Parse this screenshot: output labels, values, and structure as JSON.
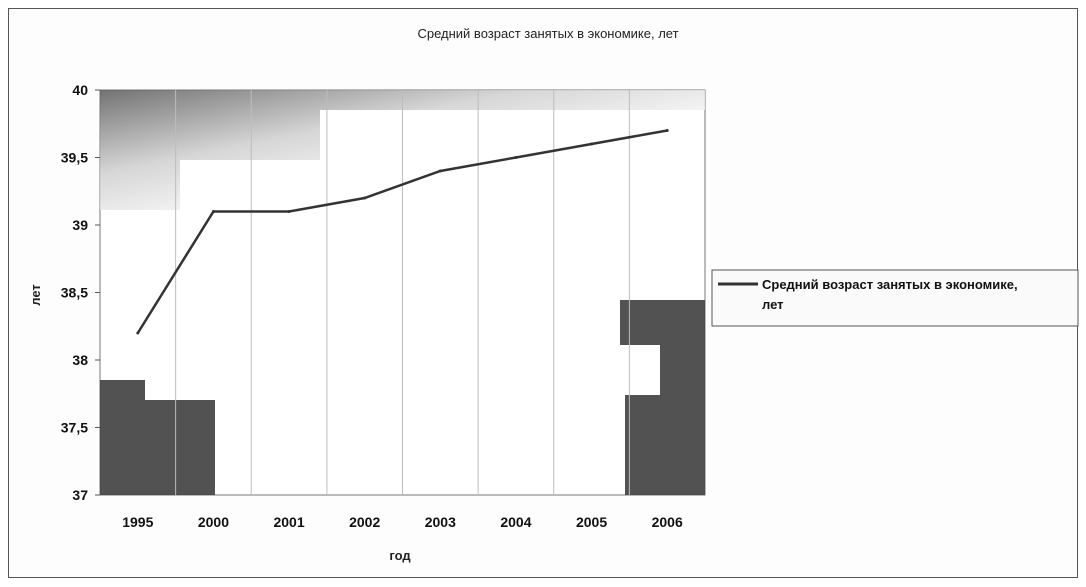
{
  "chart_data": {
    "type": "line",
    "title": "Средний возраст занятых в экономике, лет",
    "xlabel": "год",
    "ylabel": "лет",
    "categories": [
      "1995",
      "2000",
      "2001",
      "2002",
      "2003",
      "2004",
      "2005",
      "2006"
    ],
    "series": [
      {
        "name": "Средний возраст занятых в экономике, лет",
        "values": [
          38.2,
          39.1,
          39.1,
          39.2,
          39.4,
          39.5,
          39.6,
          39.7
        ],
        "color": "#333333"
      }
    ],
    "ylim": [
      37,
      40
    ],
    "yticks": [
      "37",
      "37,5",
      "38",
      "38,5",
      "39",
      "39,5",
      "40"
    ],
    "grid": "vertical",
    "legend_position": "right"
  }
}
